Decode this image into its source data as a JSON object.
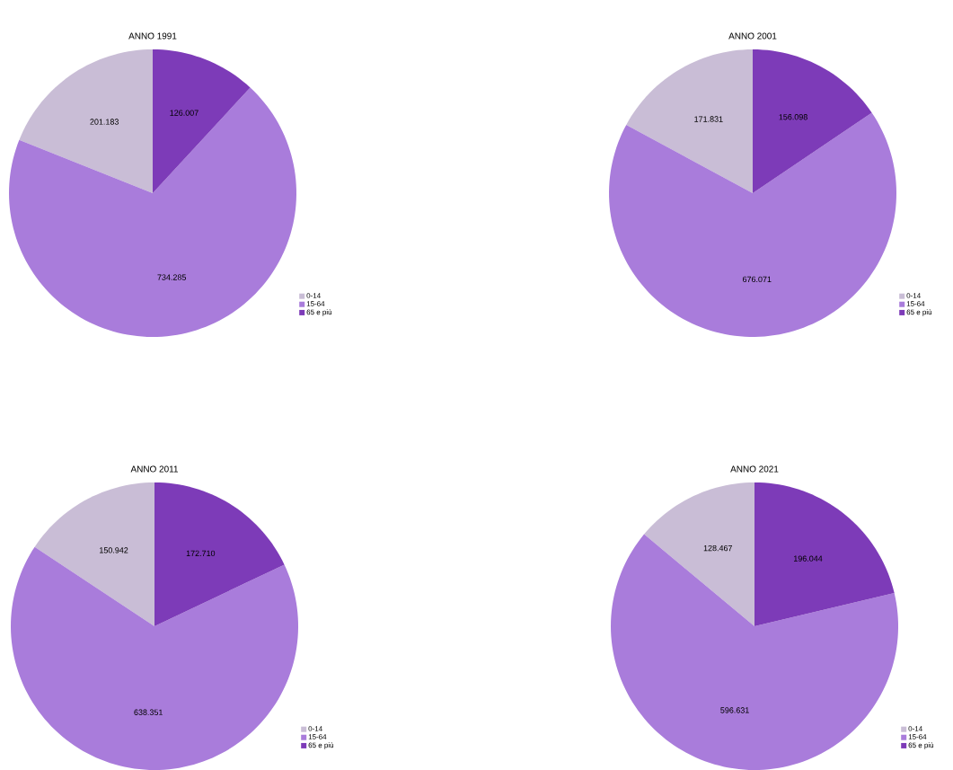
{
  "chart_data": [
    {
      "type": "pie",
      "title": "ANNO 1991",
      "categories": [
        "0-14",
        "15-64",
        "65 e più"
      ],
      "values": [
        201183,
        734285,
        126007
      ],
      "value_labels": [
        "201.183",
        "734.285",
        "126.007"
      ],
      "colors": [
        "#c9bdd6",
        "#a97cdb",
        "#7d3bb8"
      ],
      "legend": "bottom right"
    },
    {
      "type": "pie",
      "title": "ANNO 2001",
      "categories": [
        "0-14",
        "15-64",
        "65 e più"
      ],
      "values": [
        171831,
        676071,
        156098
      ],
      "value_labels": [
        "171.831",
        "676.071",
        "156.098"
      ],
      "colors": [
        "#c9bdd6",
        "#a97cdb",
        "#7d3bb8"
      ],
      "legend": "bottom right"
    },
    {
      "type": "pie",
      "title": "ANNO 2011",
      "categories": [
        "0-14",
        "15-64",
        "65 e più"
      ],
      "values": [
        150942,
        638351,
        172710
      ],
      "value_labels": [
        "150.942",
        "638.351",
        "172.710"
      ],
      "colors": [
        "#c9bdd6",
        "#a97cdb",
        "#7d3bb8"
      ],
      "legend": "bottom right"
    },
    {
      "type": "pie",
      "title": "ANNO 2021",
      "categories": [
        "0-14",
        "15-64",
        "65 e più"
      ],
      "values": [
        128467,
        596631,
        196044
      ],
      "value_labels": [
        "128.467",
        "596.631",
        "196.044"
      ],
      "colors": [
        "#c9bdd6",
        "#a97cdb",
        "#7d3bb8"
      ],
      "legend": "bottom right"
    }
  ]
}
